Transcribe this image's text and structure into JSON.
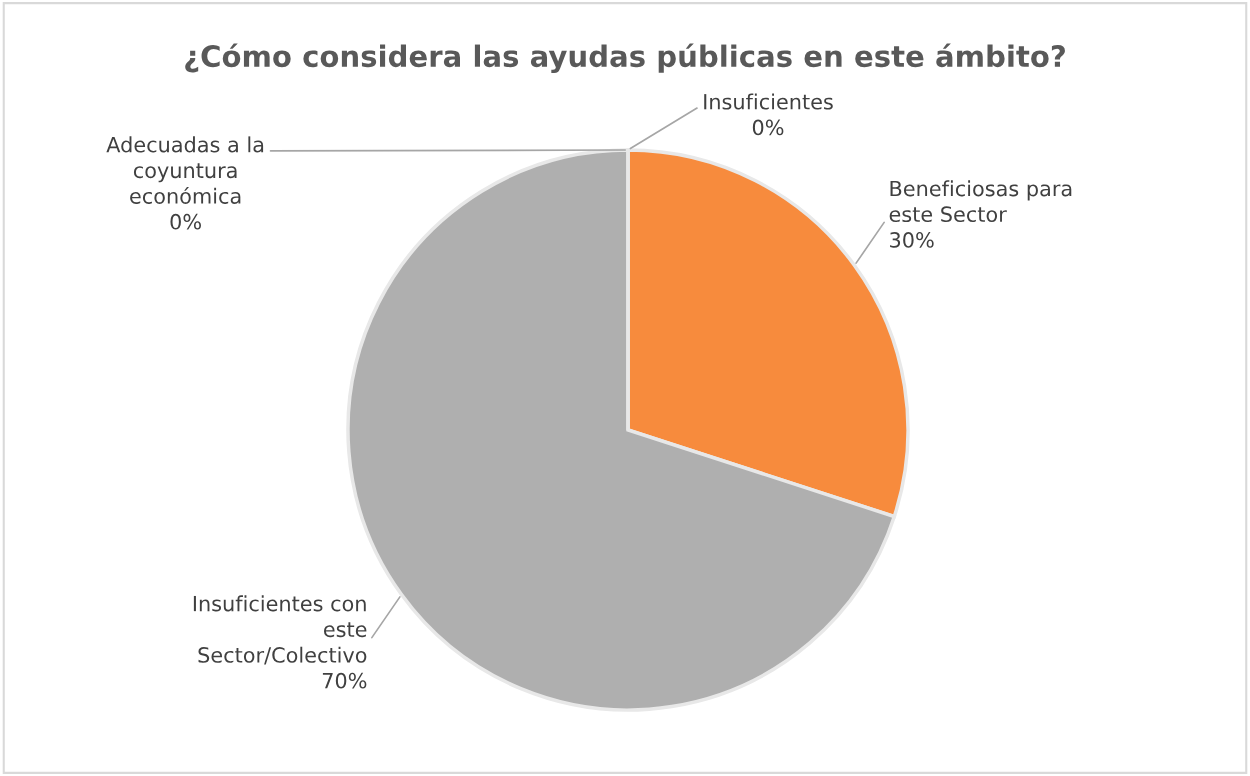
{
  "chart_data": {
    "type": "pie",
    "title": "¿Cómo considera las ayudas públicas en este ámbito?",
    "categories": [
      "Insuficientes",
      "Beneficiosas para\neste Sector",
      "Insuficientes con\neste\nSector/Colectivo",
      "Adecuadas a la\ncoyuntura\neconómica"
    ],
    "values": [
      0,
      30,
      70,
      0
    ],
    "value_labels": [
      "0%",
      "30%",
      "70%",
      "0%"
    ],
    "colors": [
      "#5b9bd5",
      "#f78b3d",
      "#afafaf",
      "#ffc000"
    ]
  }
}
